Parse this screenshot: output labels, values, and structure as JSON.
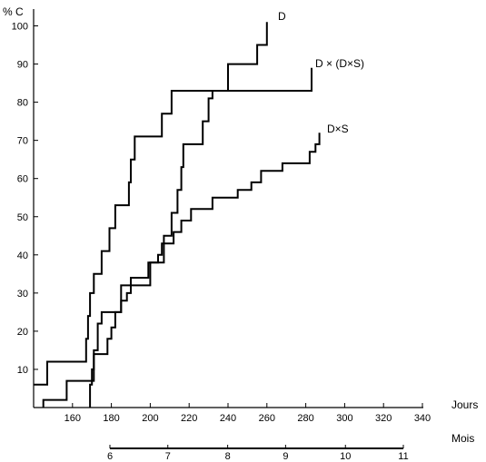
{
  "chart_data": {
    "type": "line",
    "title": "",
    "ylabel": "% C",
    "xlabel": "Jours",
    "secondary_xlabel": "Mois",
    "xlim": [
      140,
      340
    ],
    "ylim": [
      0,
      100
    ],
    "x_ticks": [
      160,
      180,
      200,
      220,
      240,
      260,
      280,
      300,
      320,
      340
    ],
    "y_ticks": [
      10,
      20,
      30,
      40,
      50,
      60,
      70,
      80,
      90,
      100
    ],
    "secondary_x_ticks": [
      {
        "label": "6",
        "days": 137
      },
      {
        "label": "7",
        "days": 167
      },
      {
        "label": "8",
        "days": 198
      },
      {
        "label": "9",
        "days": 228
      },
      {
        "label": "10",
        "days": 259
      },
      {
        "label": "11",
        "days": 289
      }
    ],
    "grid": false,
    "legend": "none",
    "line_color": "#000000",
    "series": [
      {
        "name": "D",
        "points": [
          [
            140,
            6
          ],
          [
            147,
            6
          ],
          [
            147,
            12
          ],
          [
            167,
            12
          ],
          [
            167,
            18
          ],
          [
            168,
            18
          ],
          [
            168,
            24
          ],
          [
            169,
            24
          ],
          [
            169,
            30
          ],
          [
            171,
            30
          ],
          [
            171,
            35
          ],
          [
            175,
            35
          ],
          [
            175,
            41
          ],
          [
            179,
            41
          ],
          [
            179,
            47
          ],
          [
            182,
            47
          ],
          [
            182,
            53
          ],
          [
            189,
            53
          ],
          [
            189,
            59
          ],
          [
            190,
            59
          ],
          [
            190,
            65
          ],
          [
            192,
            65
          ],
          [
            192,
            71
          ],
          [
            206,
            71
          ],
          [
            206,
            77
          ],
          [
            211,
            77
          ],
          [
            211,
            83
          ],
          [
            240,
            83
          ],
          [
            240,
            90
          ],
          [
            255,
            90
          ],
          [
            255,
            95
          ],
          [
            260,
            95
          ],
          [
            260,
            101
          ]
        ]
      },
      {
        "name": "D × (D×S)",
        "points": [
          [
            145,
            0
          ],
          [
            145,
            2
          ],
          [
            157,
            2
          ],
          [
            157,
            7
          ],
          [
            171,
            7
          ],
          [
            171,
            15
          ],
          [
            173,
            15
          ],
          [
            173,
            22
          ],
          [
            175,
            22
          ],
          [
            175,
            25
          ],
          [
            185,
            25
          ],
          [
            185,
            32
          ],
          [
            200,
            32
          ],
          [
            200,
            38
          ],
          [
            207,
            38
          ],
          [
            207,
            45
          ],
          [
            211,
            45
          ],
          [
            211,
            51
          ],
          [
            214,
            51
          ],
          [
            214,
            57
          ],
          [
            216,
            57
          ],
          [
            216,
            63
          ],
          [
            217,
            63
          ],
          [
            217,
            69
          ],
          [
            227,
            69
          ],
          [
            227,
            75
          ],
          [
            230,
            75
          ],
          [
            230,
            81
          ],
          [
            232,
            81
          ],
          [
            232,
            83
          ],
          [
            283,
            83
          ],
          [
            283,
            89
          ]
        ]
      },
      {
        "name": "D×S",
        "points": [
          [
            169,
            0
          ],
          [
            169,
            6
          ],
          [
            170,
            6
          ],
          [
            170,
            10
          ],
          [
            171,
            10
          ],
          [
            171,
            14
          ],
          [
            178,
            14
          ],
          [
            178,
            18
          ],
          [
            180,
            18
          ],
          [
            180,
            21
          ],
          [
            182,
            21
          ],
          [
            182,
            25
          ],
          [
            185,
            25
          ],
          [
            185,
            28
          ],
          [
            188,
            28
          ],
          [
            188,
            30
          ],
          [
            190,
            30
          ],
          [
            190,
            34
          ],
          [
            199,
            34
          ],
          [
            199,
            38
          ],
          [
            204,
            38
          ],
          [
            204,
            40
          ],
          [
            206,
            40
          ],
          [
            206,
            43
          ],
          [
            212,
            43
          ],
          [
            212,
            46
          ],
          [
            216,
            46
          ],
          [
            216,
            49
          ],
          [
            221,
            49
          ],
          [
            221,
            52
          ],
          [
            232,
            52
          ],
          [
            232,
            55
          ],
          [
            245,
            55
          ],
          [
            245,
            57
          ],
          [
            252,
            57
          ],
          [
            252,
            59
          ],
          [
            257,
            59
          ],
          [
            257,
            62
          ],
          [
            268,
            62
          ],
          [
            268,
            64
          ],
          [
            282,
            64
          ],
          [
            282,
            67
          ],
          [
            285,
            67
          ],
          [
            285,
            69
          ],
          [
            287,
            69
          ],
          [
            287,
            72
          ]
        ]
      }
    ]
  }
}
